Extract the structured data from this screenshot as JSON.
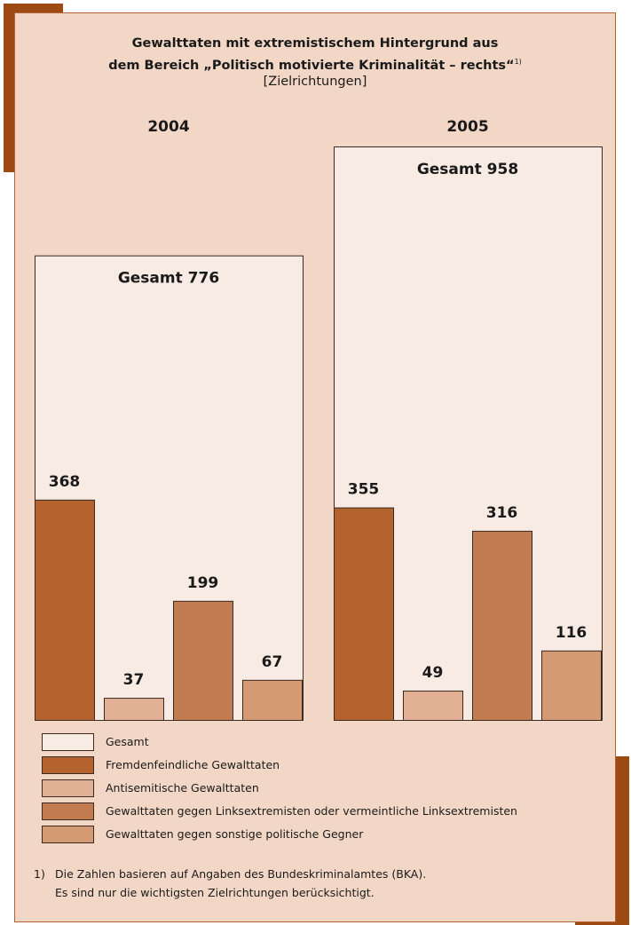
{
  "chart_data": {
    "type": "bar",
    "title_line1": "Gewalttaten mit extremistischem Hintergrund aus",
    "title_line2": "dem Bereich „Politisch motivierte Kriminalität – rechts“",
    "title_footnote_mark": "1)",
    "subtitle": "[Zielrichtungen]",
    "groups": [
      {
        "year": "2004",
        "total": 776,
        "total_label": "Gesamt 776",
        "values": [
          368,
          37,
          199,
          67
        ]
      },
      {
        "year": "2005",
        "total": 958,
        "total_label": "Gesamt 958",
        "values": [
          355,
          49,
          316,
          116
        ]
      }
    ],
    "series": [
      {
        "name": "Fremdenfeindliche Gewalttaten",
        "color": "#b4622e"
      },
      {
        "name": "Antisemitische Gewalttaten",
        "color": "#e1b095"
      },
      {
        "name": "Gewalttaten gegen Linksextremisten oder vermeintliche Linksextremisten",
        "color": "#c27c52"
      },
      {
        "name": "Gewalttaten gegen sonstige politische Gegner",
        "color": "#d39a73"
      }
    ],
    "ylim": [
      0,
      958
    ]
  },
  "legend": [
    {
      "label": "Gesamt",
      "color": "#f8ebe4"
    },
    {
      "label": "Fremdenfeindliche Gewalttaten",
      "color": "#b4622e"
    },
    {
      "label": "Antisemitische Gewalttaten",
      "color": "#e1b095"
    },
    {
      "label": "Gewalttaten gegen Linksextremisten oder vermeintliche Linksextremisten",
      "color": "#c27c52"
    },
    {
      "label": "Gewalttaten gegen sonstige politische Gegner",
      "color": "#d39a73"
    }
  ],
  "footnote": {
    "marker": "1)",
    "line1": "Die Zahlen basieren auf Angaben des Bundeskriminalamtes (BKA).",
    "line2": "Es sind nur die wichtigsten Zielrichtungen berücksichtigt."
  }
}
